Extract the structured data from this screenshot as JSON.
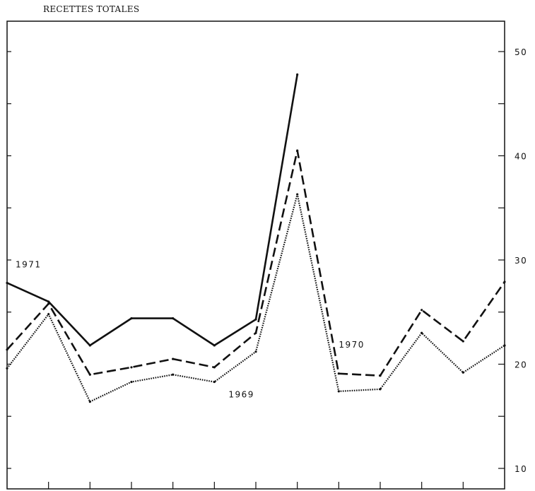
{
  "chart_data": {
    "type": "line",
    "title": "RECETTES TOTALES",
    "xlabel": "",
    "ylabel": "",
    "x": [
      1,
      2,
      3,
      4,
      5,
      6,
      7,
      8,
      9,
      10,
      11,
      12,
      13
    ],
    "ylim": [
      8,
      53
    ],
    "y_ticks": [
      10,
      15,
      20,
      25,
      30,
      35,
      40,
      45,
      50
    ],
    "y_tick_labels": [
      "10",
      "",
      "20",
      "",
      "30",
      "",
      "40",
      "",
      "50"
    ],
    "y_axis_side": "right",
    "grid": false,
    "legend": "none",
    "series": [
      {
        "name": "1971",
        "style": "solid",
        "values": [
          27.8,
          26.0,
          21.8,
          24.4,
          24.4,
          21.8,
          24.3,
          47.8,
          null,
          null,
          null,
          null,
          null
        ]
      },
      {
        "name": "1970",
        "style": "dashed",
        "values": [
          21.4,
          25.8,
          19.0,
          19.7,
          20.5,
          19.7,
          23.0,
          40.5,
          19.1,
          18.9,
          25.2,
          22.2,
          27.9
        ]
      },
      {
        "name": "1969",
        "style": "dotted",
        "values": [
          19.6,
          24.8,
          16.4,
          18.3,
          19.0,
          18.3,
          21.2,
          36.3,
          17.4,
          17.6,
          23.0,
          19.2,
          21.8
        ]
      }
    ]
  }
}
